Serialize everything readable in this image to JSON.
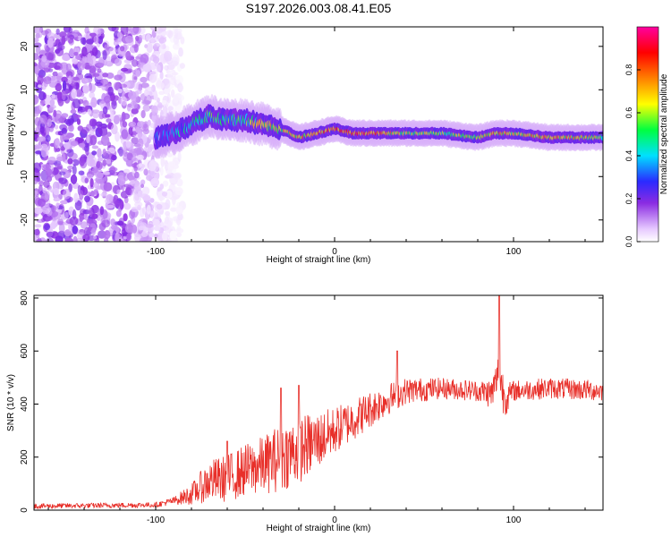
{
  "title": "S197.2026.003.08.41.E05",
  "colors": {
    "snr_line": "#e8302a",
    "axis": "#000000",
    "background": "#ffffff"
  },
  "chart_data": [
    {
      "type": "heatmap",
      "name": "spectrogram",
      "xlabel": "Height of straight line (km)",
      "ylabel": "Frequency (Hz)",
      "xlim": [
        -168,
        150
      ],
      "ylim": [
        -25,
        24.5
      ],
      "xticks": [
        -100,
        0,
        100
      ],
      "yticks": [
        20,
        10,
        0,
        -10,
        -20
      ],
      "colorbar": {
        "label": "Normalized spectral amplitude",
        "range": [
          0,
          1
        ],
        "ticks": [
          0.0,
          0.2,
          0.4,
          0.6,
          0.8
        ],
        "colormap": "rainbow (white-lilac-purple-blue-cyan-green-yellow-orange-red-magenta)"
      },
      "ridge": {
        "description": "Dominant frequency ridge vs height",
        "x": [
          -100,
          -90,
          -80,
          -70,
          -60,
          -50,
          -40,
          -30,
          -20,
          -10,
          0,
          10,
          20,
          40,
          60,
          80,
          90,
          100,
          120,
          150
        ],
        "freq": [
          -1,
          0,
          2,
          4,
          3,
          3,
          2,
          1,
          -1,
          0,
          1,
          0,
          0,
          0,
          0,
          -1,
          0,
          0,
          -1,
          -1
        ],
        "amplitude": [
          0.2,
          0.3,
          0.4,
          0.45,
          0.45,
          0.5,
          0.6,
          0.6,
          0.65,
          0.7,
          0.75,
          0.8,
          0.8,
          0.55,
          0.55,
          0.6,
          0.7,
          0.6,
          0.7,
          0.55
        ]
      },
      "noise_region": {
        "x_from": -168,
        "x_to": -100,
        "description": "Scattered low-amplitude purple blobs across all frequencies"
      }
    },
    {
      "type": "line",
      "name": "snr",
      "xlabel": "Height of straight line (km)",
      "ylabel": "SNR (10 * v/v)",
      "xlim": [
        -168,
        150
      ],
      "ylim": [
        0,
        810
      ],
      "xticks": [
        -100,
        0,
        100
      ],
      "yticks": [
        0,
        200,
        400,
        600,
        800
      ],
      "envelope": {
        "x": [
          -168,
          -100,
          -90,
          -80,
          -70,
          -60,
          -50,
          -40,
          -30,
          -20,
          -10,
          0,
          10,
          20,
          30,
          40,
          60,
          80,
          88,
          92,
          94,
          96,
          100,
          120,
          150
        ],
        "mean": [
          15,
          20,
          35,
          60,
          110,
          120,
          150,
          170,
          200,
          230,
          260,
          300,
          340,
          380,
          420,
          450,
          460,
          450,
          440,
          520,
          450,
          420,
          450,
          460,
          450
        ],
        "spread": [
          10,
          10,
          15,
          40,
          80,
          90,
          100,
          110,
          130,
          130,
          110,
          90,
          80,
          70,
          60,
          50,
          40,
          40,
          60,
          90,
          90,
          60,
          40,
          40,
          40
        ],
        "peaks": [
          [
            -60,
            260
          ],
          [
            -30,
            460
          ],
          [
            -20,
            470
          ],
          [
            35,
            600
          ],
          [
            92,
            810
          ]
        ]
      }
    }
  ]
}
